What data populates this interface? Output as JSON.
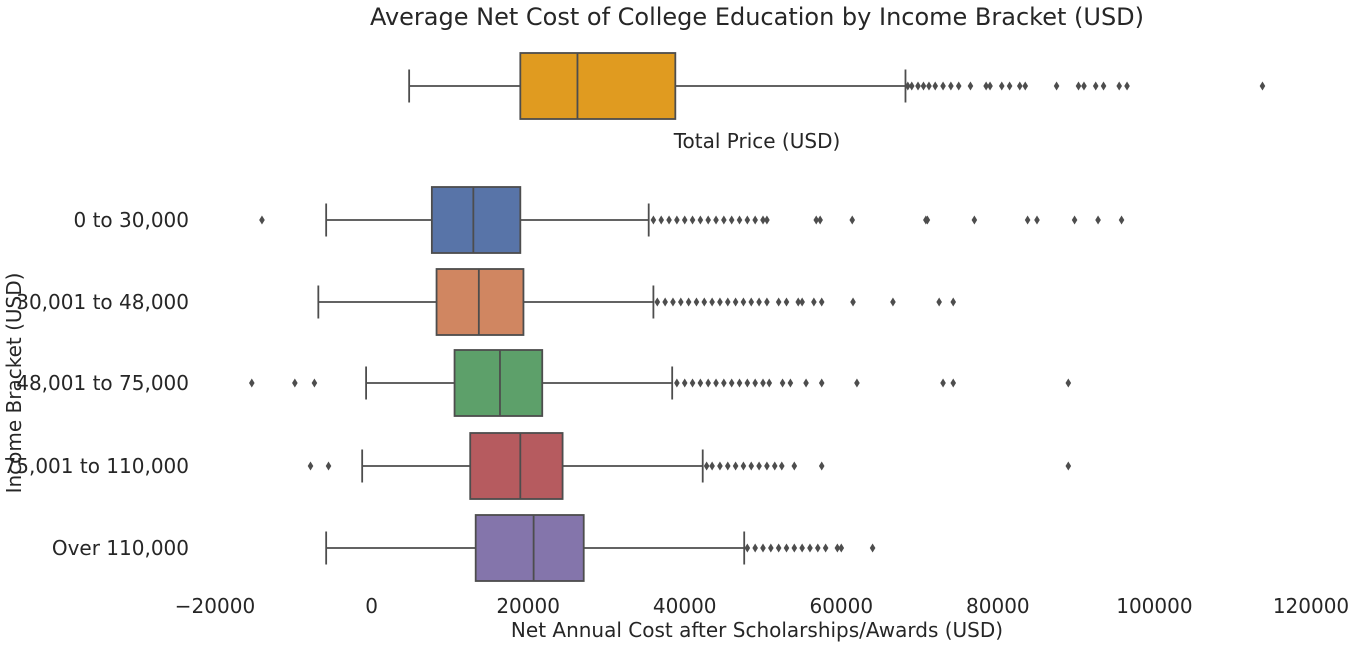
{
  "chart_data": [
    {
      "type": "box",
      "title": "Average Net Cost of College Education by Income Bracket (USD)",
      "xlabel": "Total Price (USD)",
      "ylabel": "",
      "grid": false,
      "series": [
        {
          "name": "",
          "color": "#e09b20",
          "min": 4800,
          "q1": 19000,
          "median": 26300,
          "q3": 38800,
          "max": 68200,
          "outliers": [
            68500,
            69000,
            69800,
            70500,
            71200,
            72000,
            73000,
            74000,
            75000,
            76500,
            78500,
            79000,
            80500,
            81500,
            82800,
            83500,
            87500,
            90300,
            91000,
            92500,
            93500,
            95500,
            96500,
            113800
          ]
        }
      ]
    },
    {
      "type": "box",
      "xlabel": "Net Annual Cost after Scholarships/Awards (USD)",
      "ylabel": "Income Bracket (USD)",
      "xlim": [
        -20000,
        120000
      ],
      "xticks": [
        -20000,
        0,
        20000,
        40000,
        60000,
        80000,
        100000,
        120000
      ],
      "tick_labels": [
        "−20000",
        "0",
        "20000",
        "40000",
        "60000",
        "80000",
        "100000",
        "120000"
      ],
      "grid": false,
      "categories": [
        "0 to 30,000",
        "30,001 to 48,000",
        "48,001 to 75,000",
        "75,001 to 110,000",
        "Over 110,000"
      ],
      "series": [
        {
          "name": "0 to 30,000",
          "color": "#5874a8",
          "min": -5800,
          "q1": 7700,
          "median": 13000,
          "q3": 19000,
          "max": 35400,
          "outliers": [
            -14000,
            36000,
            37000,
            38000,
            39000,
            40000,
            41000,
            42000,
            43000,
            44000,
            45000,
            46000,
            47000,
            48000,
            49000,
            50000,
            50500,
            56800,
            57300,
            61400,
            70800,
            71000,
            77000,
            83800,
            85000,
            89800,
            92800,
            95800
          ]
        },
        {
          "name": "30,001 to 48,000",
          "color": "#d08661",
          "min": -6800,
          "q1": 8300,
          "median": 13700,
          "q3": 19400,
          "max": 36000,
          "outliers": [
            36500,
            37500,
            38500,
            39500,
            40500,
            41500,
            42500,
            43500,
            44500,
            45500,
            46500,
            47500,
            48500,
            49500,
            50500,
            52000,
            53000,
            54500,
            55000,
            56500,
            57500,
            61500,
            66600,
            72500,
            74300
          ]
        },
        {
          "name": "48,001 to 75,000",
          "color": "#5da06a",
          "min": -700,
          "q1": 10600,
          "median": 16400,
          "q3": 21800,
          "max": 38400,
          "outliers": [
            -15300,
            -9800,
            -7300,
            39000,
            40000,
            41000,
            42000,
            43000,
            44000,
            45000,
            46000,
            47000,
            48000,
            49000,
            50000,
            50800,
            52500,
            53500,
            55500,
            57500,
            62000,
            73000,
            74300,
            89000
          ]
        },
        {
          "name": "75,001 to 110,000",
          "color": "#b65b5f",
          "min": -1200,
          "q1": 12600,
          "median": 19000,
          "q3": 24400,
          "max": 42300,
          "outliers": [
            -7800,
            -5500,
            42800,
            43500,
            44500,
            45500,
            46500,
            47500,
            48500,
            49500,
            50500,
            51500,
            52400,
            54000,
            57500,
            89000
          ]
        },
        {
          "name": "Over 110,000",
          "color": "#8475ab",
          "min": -5800,
          "q1": 13300,
          "median": 20700,
          "q3": 27100,
          "max": 47600,
          "outliers": [
            48000,
            49000,
            50000,
            51000,
            52000,
            53000,
            54000,
            55000,
            56000,
            57000,
            58000,
            59500,
            60000,
            64000
          ]
        }
      ]
    }
  ]
}
